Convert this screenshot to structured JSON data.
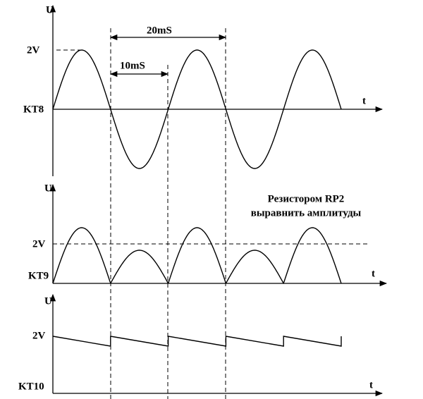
{
  "panels": [
    {
      "axis_y": "U",
      "axis_x": "t",
      "level": "2V",
      "label": "KT8"
    },
    {
      "axis_y": "U",
      "axis_x": "t",
      "level": "2V",
      "label": "KT9"
    },
    {
      "axis_y": "U",
      "axis_x": "t",
      "level": "2V",
      "label": "KT10"
    }
  ],
  "annotations": {
    "period": "20mS",
    "half_period": "10mS",
    "note": [
      "Резистором RP2",
      "выравнить амплитуды"
    ]
  }
}
